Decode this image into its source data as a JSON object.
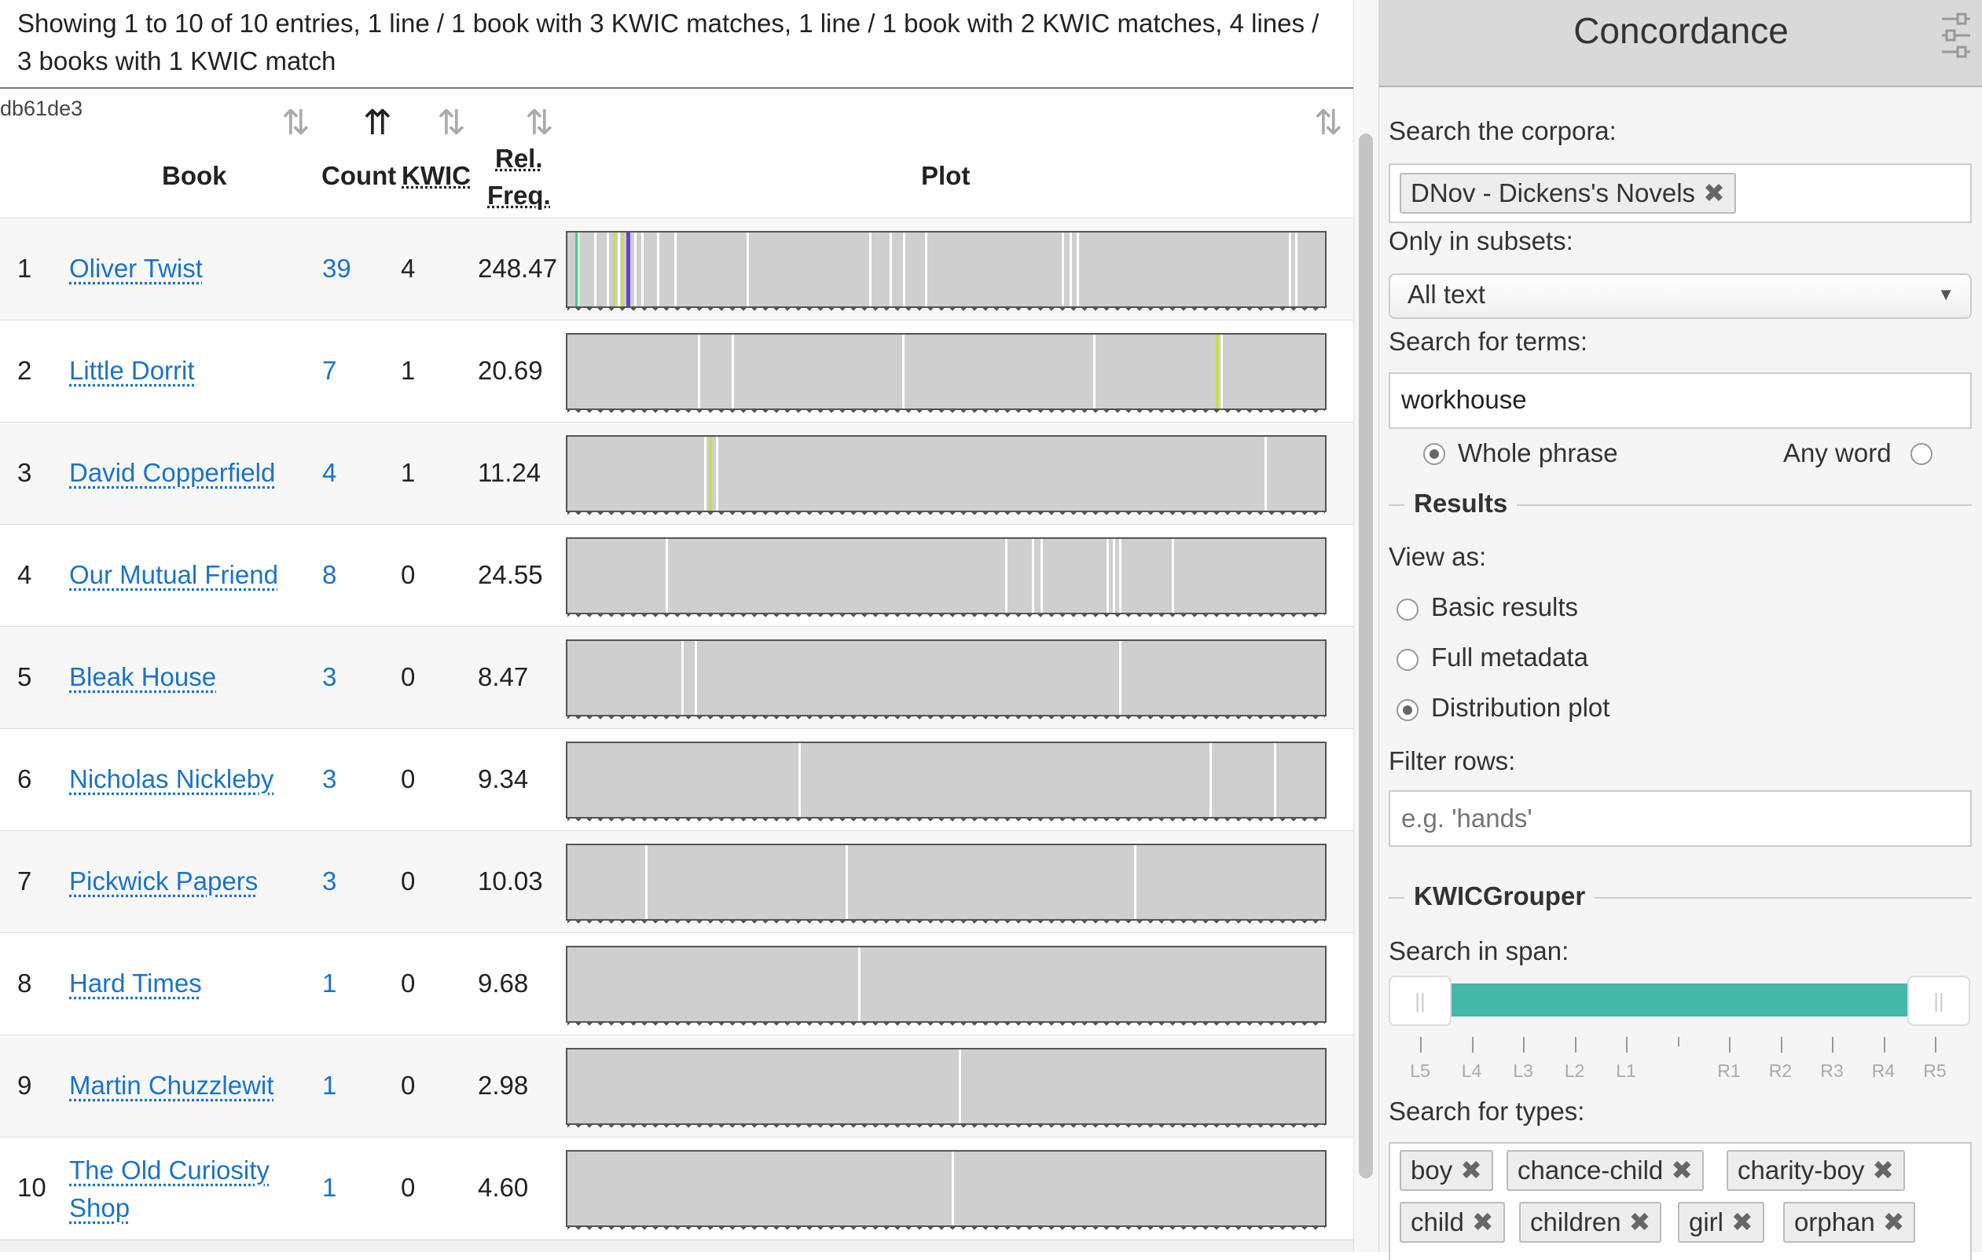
{
  "summary": "Showing 1 to 10 of 10 entries, 1 line / 1 book with 3 KWIC matches, 1 line / 1 book with 2 KWIC matches, 4 lines / 3 books with 1 KWIC match",
  "table": {
    "code_label": "db61de3",
    "headers": {
      "book": "Book",
      "count": "Count",
      "kwic": "KWIC",
      "rel_freq_1": "Rel.",
      "rel_freq_2": "Freq.",
      "plot": "Plot"
    },
    "sort_icon": "⇅",
    "sort_active_icon": "⇈",
    "rows": [
      {
        "idx": "1",
        "book": "Oliver Twist",
        "count": "39",
        "kwic": "4",
        "freq": "248.47",
        "marks": [
          {
            "p": 0.01,
            "w": 6,
            "c": "#3ec9b0"
          },
          {
            "p": 0.014,
            "w": 3,
            "c": "#e6f0b0"
          },
          {
            "p": 0.035,
            "w": 3,
            "c": "#fff"
          },
          {
            "p": 0.052,
            "w": 3,
            "c": "#fff"
          },
          {
            "p": 0.06,
            "w": 3,
            "c": "#c6e04a"
          },
          {
            "p": 0.066,
            "w": 3,
            "c": "#fff"
          },
          {
            "p": 0.072,
            "w": 3,
            "c": "#c6e04a"
          },
          {
            "p": 0.078,
            "w": 5,
            "c": "#6a3fcf"
          },
          {
            "p": 0.088,
            "w": 3,
            "c": "#fff"
          },
          {
            "p": 0.098,
            "w": 3,
            "c": "#fff"
          },
          {
            "p": 0.118,
            "w": 3,
            "c": "#fff"
          },
          {
            "p": 0.141,
            "w": 3,
            "c": "#fff"
          },
          {
            "p": 0.236,
            "w": 3,
            "c": "#fff"
          },
          {
            "p": 0.398,
            "w": 3,
            "c": "#fff"
          },
          {
            "p": 0.425,
            "w": 3,
            "c": "#fff"
          },
          {
            "p": 0.443,
            "w": 3,
            "c": "#fff"
          },
          {
            "p": 0.472,
            "w": 3,
            "c": "#fff"
          },
          {
            "p": 0.653,
            "w": 3,
            "c": "#fff"
          },
          {
            "p": 0.663,
            "w": 3,
            "c": "#fff"
          },
          {
            "p": 0.672,
            "w": 3,
            "c": "#fff"
          },
          {
            "p": 0.952,
            "w": 3,
            "c": "#fff"
          },
          {
            "p": 0.961,
            "w": 3,
            "c": "#fff"
          }
        ]
      },
      {
        "idx": "2",
        "book": "Little Dorrit",
        "count": "7",
        "kwic": "1",
        "freq": "20.69",
        "marks": [
          {
            "p": 0.172,
            "w": 3,
            "c": "#fff"
          },
          {
            "p": 0.217,
            "w": 3,
            "c": "#fff"
          },
          {
            "p": 0.442,
            "w": 3,
            "c": "#fff"
          },
          {
            "p": 0.694,
            "w": 3,
            "c": "#fff"
          },
          {
            "p": 0.856,
            "w": 4,
            "c": "#c6e04a"
          },
          {
            "p": 0.862,
            "w": 3,
            "c": "#fff"
          }
        ]
      },
      {
        "idx": "3",
        "book": "David Copperfield",
        "count": "4",
        "kwic": "1",
        "freq": "11.24",
        "marks": [
          {
            "p": 0.18,
            "w": 3,
            "c": "#fff"
          },
          {
            "p": 0.187,
            "w": 4,
            "c": "#c6e04a"
          },
          {
            "p": 0.196,
            "w": 3,
            "c": "#fff"
          },
          {
            "p": 0.92,
            "w": 3,
            "c": "#fff"
          }
        ]
      },
      {
        "idx": "4",
        "book": "Our Mutual Friend",
        "count": "8",
        "kwic": "0",
        "freq": "24.55",
        "marks": [
          {
            "p": 0.13,
            "w": 3,
            "c": "#fff"
          },
          {
            "p": 0.578,
            "w": 3,
            "c": "#fff"
          },
          {
            "p": 0.613,
            "w": 3,
            "c": "#fff"
          },
          {
            "p": 0.624,
            "w": 3,
            "c": "#fff"
          },
          {
            "p": 0.712,
            "w": 3,
            "c": "#fff"
          },
          {
            "p": 0.72,
            "w": 3,
            "c": "#fff"
          },
          {
            "p": 0.728,
            "w": 3,
            "c": "#fff"
          },
          {
            "p": 0.798,
            "w": 3,
            "c": "#fff"
          }
        ]
      },
      {
        "idx": "5",
        "book": "Bleak House",
        "count": "3",
        "kwic": "0",
        "freq": "8.47",
        "marks": [
          {
            "p": 0.15,
            "w": 3,
            "c": "#fff"
          },
          {
            "p": 0.168,
            "w": 3,
            "c": "#fff"
          },
          {
            "p": 0.728,
            "w": 3,
            "c": "#fff"
          }
        ]
      },
      {
        "idx": "6",
        "book": "Nicholas Nickleby",
        "count": "3",
        "kwic": "0",
        "freq": "9.34",
        "marks": [
          {
            "p": 0.305,
            "w": 3,
            "c": "#fff"
          },
          {
            "p": 0.847,
            "w": 3,
            "c": "#fff"
          },
          {
            "p": 0.933,
            "w": 3,
            "c": "#fff"
          }
        ]
      },
      {
        "idx": "7",
        "book": "Pickwick Papers",
        "count": "3",
        "kwic": "0",
        "freq": "10.03",
        "marks": [
          {
            "p": 0.103,
            "w": 3,
            "c": "#fff"
          },
          {
            "p": 0.367,
            "w": 3,
            "c": "#fff"
          },
          {
            "p": 0.748,
            "w": 3,
            "c": "#fff"
          }
        ]
      },
      {
        "idx": "8",
        "book": "Hard Times",
        "count": "1",
        "kwic": "0",
        "freq": "9.68",
        "marks": [
          {
            "p": 0.384,
            "w": 3,
            "c": "#fff"
          }
        ]
      },
      {
        "idx": "9",
        "book": "Martin Chuzzlewit",
        "count": "1",
        "kwic": "0",
        "freq": "2.98",
        "marks": [
          {
            "p": 0.517,
            "w": 3,
            "c": "#fff"
          }
        ]
      },
      {
        "idx": "10",
        "book": "The Old Curiosity Shop",
        "count": "1",
        "kwic": "0",
        "freq": "4.60",
        "marks": [
          {
            "p": 0.507,
            "w": 3,
            "c": "#fff"
          }
        ]
      }
    ]
  },
  "panel": {
    "title": "Concordance",
    "settings_icon": "sliders-icon",
    "search_corpora_label": "Search the corpora:",
    "corpora_tags": [
      {
        "label": "DNov - Dickens's Novels",
        "remove": "✖"
      }
    ],
    "subsets_label": "Only in subsets:",
    "subsets_value": "All text",
    "subsets_caret": "▼",
    "terms_label": "Search for terms:",
    "terms_value": "workhouse",
    "match_mode": {
      "whole": "Whole phrase",
      "any": "Any word",
      "selected": "whole"
    },
    "results_title": "Results",
    "view_as_label": "View as:",
    "view_options": [
      "Basic results",
      "Full metadata",
      "Distribution plot"
    ],
    "view_selected": 2,
    "filter_label": "Filter rows:",
    "filter_placeholder": "e.g. 'hands'",
    "kwic_title": "KWICGrouper",
    "span_label": "Search in span:",
    "span_ticks": [
      "L5",
      "L4",
      "L3",
      "L2",
      "L1",
      "",
      "R1",
      "R2",
      "R3",
      "R4",
      "R5"
    ],
    "span_handle_glyph": "||",
    "types_label": "Search for types:",
    "type_tags": [
      {
        "label": "boy",
        "remove": "✖"
      },
      {
        "label": "chance-child",
        "remove": "✖"
      },
      {
        "label": "charity-boy",
        "remove": "✖"
      },
      {
        "label": "child",
        "remove": "✖"
      },
      {
        "label": "children",
        "remove": "✖"
      },
      {
        "label": "girl",
        "remove": "✖"
      },
      {
        "label": "orphan",
        "remove": "✖"
      }
    ],
    "colors": {
      "accent": "#42b8a8",
      "link": "#1a73c9"
    }
  }
}
